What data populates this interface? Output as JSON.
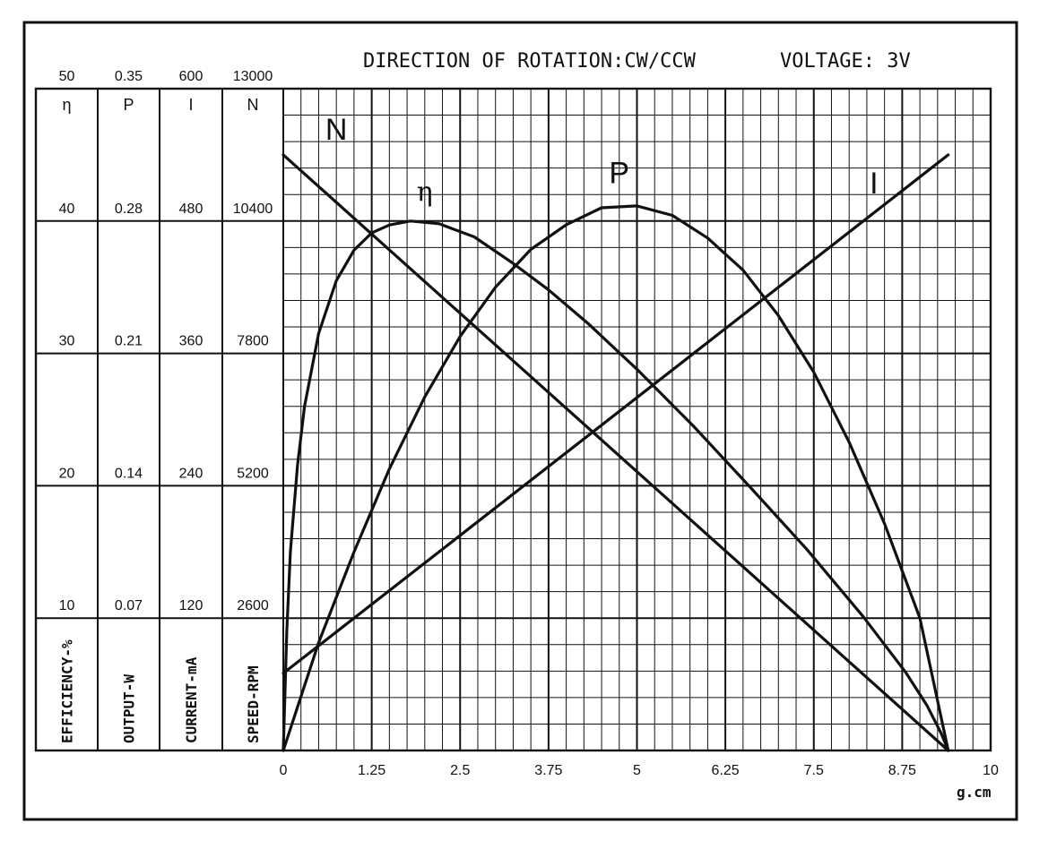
{
  "chart_data": {
    "type": "line",
    "title": "DIRECTION OF ROTATION:CW/CCW",
    "voltage": "VOLTAGE: 3V",
    "x": {
      "ticks": [
        "0",
        "1.25",
        "2.5",
        "3.75",
        "5",
        "6.25",
        "7.5",
        "8.75",
        "10"
      ],
      "range": [
        0,
        10
      ],
      "unit": "g.cm"
    },
    "axes": [
      {
        "key": "eta",
        "symbol": "η",
        "unit": "EFFICIENCY-%",
        "max": 50,
        "ticks": [
          "50",
          "40",
          "30",
          "20",
          "10"
        ]
      },
      {
        "key": "P",
        "symbol": "P",
        "unit": "OUTPUT-W",
        "max": 0.35,
        "ticks": [
          "0.35",
          "0.28",
          "0.21",
          "0.14",
          "0.07"
        ]
      },
      {
        "key": "I",
        "symbol": "I",
        "unit": "CURRENT-mA",
        "max": 600,
        "ticks": [
          "600",
          "480",
          "360",
          "240",
          "120"
        ]
      },
      {
        "key": "N",
        "symbol": "N",
        "unit": "SPEED-RPM",
        "max": 13000,
        "ticks": [
          "13000",
          "10400",
          "7800",
          "5200",
          "2600"
        ]
      }
    ],
    "series": [
      {
        "name": "N",
        "axis": "N",
        "x": [
          0,
          9.4
        ],
        "values": [
          11700,
          0
        ]
      },
      {
        "name": "I",
        "axis": "I",
        "x": [
          0,
          9.4
        ],
        "values": [
          70,
          540
        ]
      },
      {
        "name": "P",
        "axis": "P",
        "x": [
          0,
          0.5,
          1,
          1.5,
          2,
          2.5,
          3,
          3.5,
          4,
          4.5,
          5,
          5.5,
          6,
          6.5,
          7,
          7.5,
          8,
          8.5,
          9,
          9.4
        ],
        "values": [
          0,
          0.057,
          0.105,
          0.149,
          0.187,
          0.219,
          0.245,
          0.265,
          0.278,
          0.287,
          0.288,
          0.283,
          0.271,
          0.254,
          0.23,
          0.2,
          0.163,
          0.12,
          0.07,
          0
        ]
      },
      {
        "name": "η",
        "axis": "eta",
        "x": [
          0,
          0.05,
          0.1,
          0.2,
          0.3,
          0.5,
          0.75,
          1,
          1.25,
          1.5,
          1.8,
          2.2,
          2.7,
          3.25,
          3.75,
          4.3,
          5,
          5.8,
          6.6,
          7.4,
          8.2,
          8.8,
          9.1,
          9.3,
          9.4
        ],
        "values": [
          0,
          9,
          15,
          21.5,
          26,
          31.5,
          35.5,
          37.8,
          39.1,
          39.7,
          40,
          39.8,
          38.8,
          36.8,
          34.8,
          32.3,
          28.8,
          24.5,
          19.9,
          15.2,
          10.1,
          5.9,
          3.4,
          1.3,
          0
        ]
      }
    ],
    "labels": [
      {
        "text": "N",
        "x": 0.75,
        "value": 12000,
        "axis": "N"
      },
      {
        "text": "η",
        "x": 2.0,
        "value": 41.5,
        "axis": "eta"
      },
      {
        "text": "P",
        "x": 4.75,
        "value": 0.3,
        "axis": "P"
      },
      {
        "text": "I",
        "x": 8.35,
        "value": 505,
        "axis": "I"
      }
    ],
    "grid": true
  }
}
